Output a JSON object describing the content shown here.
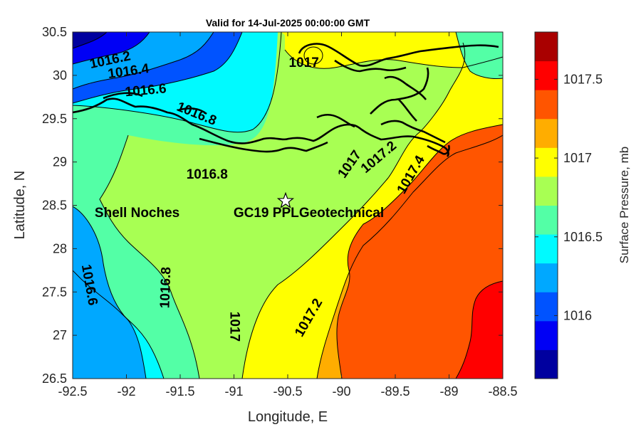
{
  "title": "Valid for 14-Jul-2025 00:00:00 GMT",
  "map": {
    "xlabel": "Longitude, E",
    "ylabel": "Latitude, N",
    "xlim": [
      -92.5,
      -88.5
    ],
    "ylim": [
      26.5,
      30.5
    ],
    "xticks": [
      "-92.5",
      "-92",
      "-91.5",
      "-91",
      "-90.5",
      "-90",
      "-89.5",
      "-89",
      "-88.5"
    ],
    "yticks": [
      "30.5",
      "30",
      "29.5",
      "29",
      "28.5",
      "28",
      "27.5",
      "27",
      "26.5"
    ],
    "contour_labels": [
      {
        "text": "1016.2",
        "lon": -92.15,
        "lat": 30.17,
        "angle": -12
      },
      {
        "text": "1016.4",
        "lon": -91.98,
        "lat": 30.04,
        "angle": -8
      },
      {
        "text": "1016.6",
        "lon": -91.82,
        "lat": 29.82,
        "angle": -5
      },
      {
        "text": "1016.8",
        "lon": -91.35,
        "lat": 29.55,
        "angle": 22
      },
      {
        "text": "1016.8",
        "lon": -91.25,
        "lat": 28.85,
        "angle": 0
      },
      {
        "text": "1017",
        "lon": -90.35,
        "lat": 30.14,
        "angle": 0
      },
      {
        "text": "1017",
        "lon": -89.92,
        "lat": 28.97,
        "angle": -55
      },
      {
        "text": "1017.2",
        "lon": -89.65,
        "lat": 29.05,
        "angle": -40
      },
      {
        "text": "1017.4",
        "lon": -89.35,
        "lat": 28.85,
        "angle": -60
      },
      {
        "text": "1016.6",
        "lon": -92.35,
        "lat": 27.58,
        "angle": 80
      },
      {
        "text": "1016.8",
        "lon": -91.63,
        "lat": 27.55,
        "angle": -88
      },
      {
        "text": "1017",
        "lon": -91.0,
        "lat": 27.1,
        "angle": 90
      },
      {
        "text": "1017.2",
        "lon": -90.3,
        "lat": 27.2,
        "angle": -60
      }
    ],
    "site": {
      "marker_lon": -90.52,
      "marker_lat": 28.55,
      "label_parts": [
        "Shell Noches",
        "GC19 PPL",
        "Geotechnical"
      ],
      "label_lon": [
        -91.9,
        -90.7,
        -90.0
      ],
      "label_lat": 28.42
    }
  },
  "colorbar": {
    "label": "Surface Pressure, mb",
    "range": [
      1015.6,
      1017.8
    ],
    "tick_values": [
      1016,
      1016.5,
      1017,
      1017.5
    ],
    "tick_labels": [
      "1016",
      "1016.5",
      "1017",
      "1017.5"
    ],
    "colors": [
      "#00009f",
      "#0000f5",
      "#0053ff",
      "#00a8ff",
      "#00faff",
      "#53ffa6",
      "#a8ff53",
      "#ffff00",
      "#ffad00",
      "#ff5500",
      "#ff0000",
      "#a90000"
    ]
  },
  "colors": {
    "land_outline": "#000000",
    "contour_line": "#000000"
  }
}
